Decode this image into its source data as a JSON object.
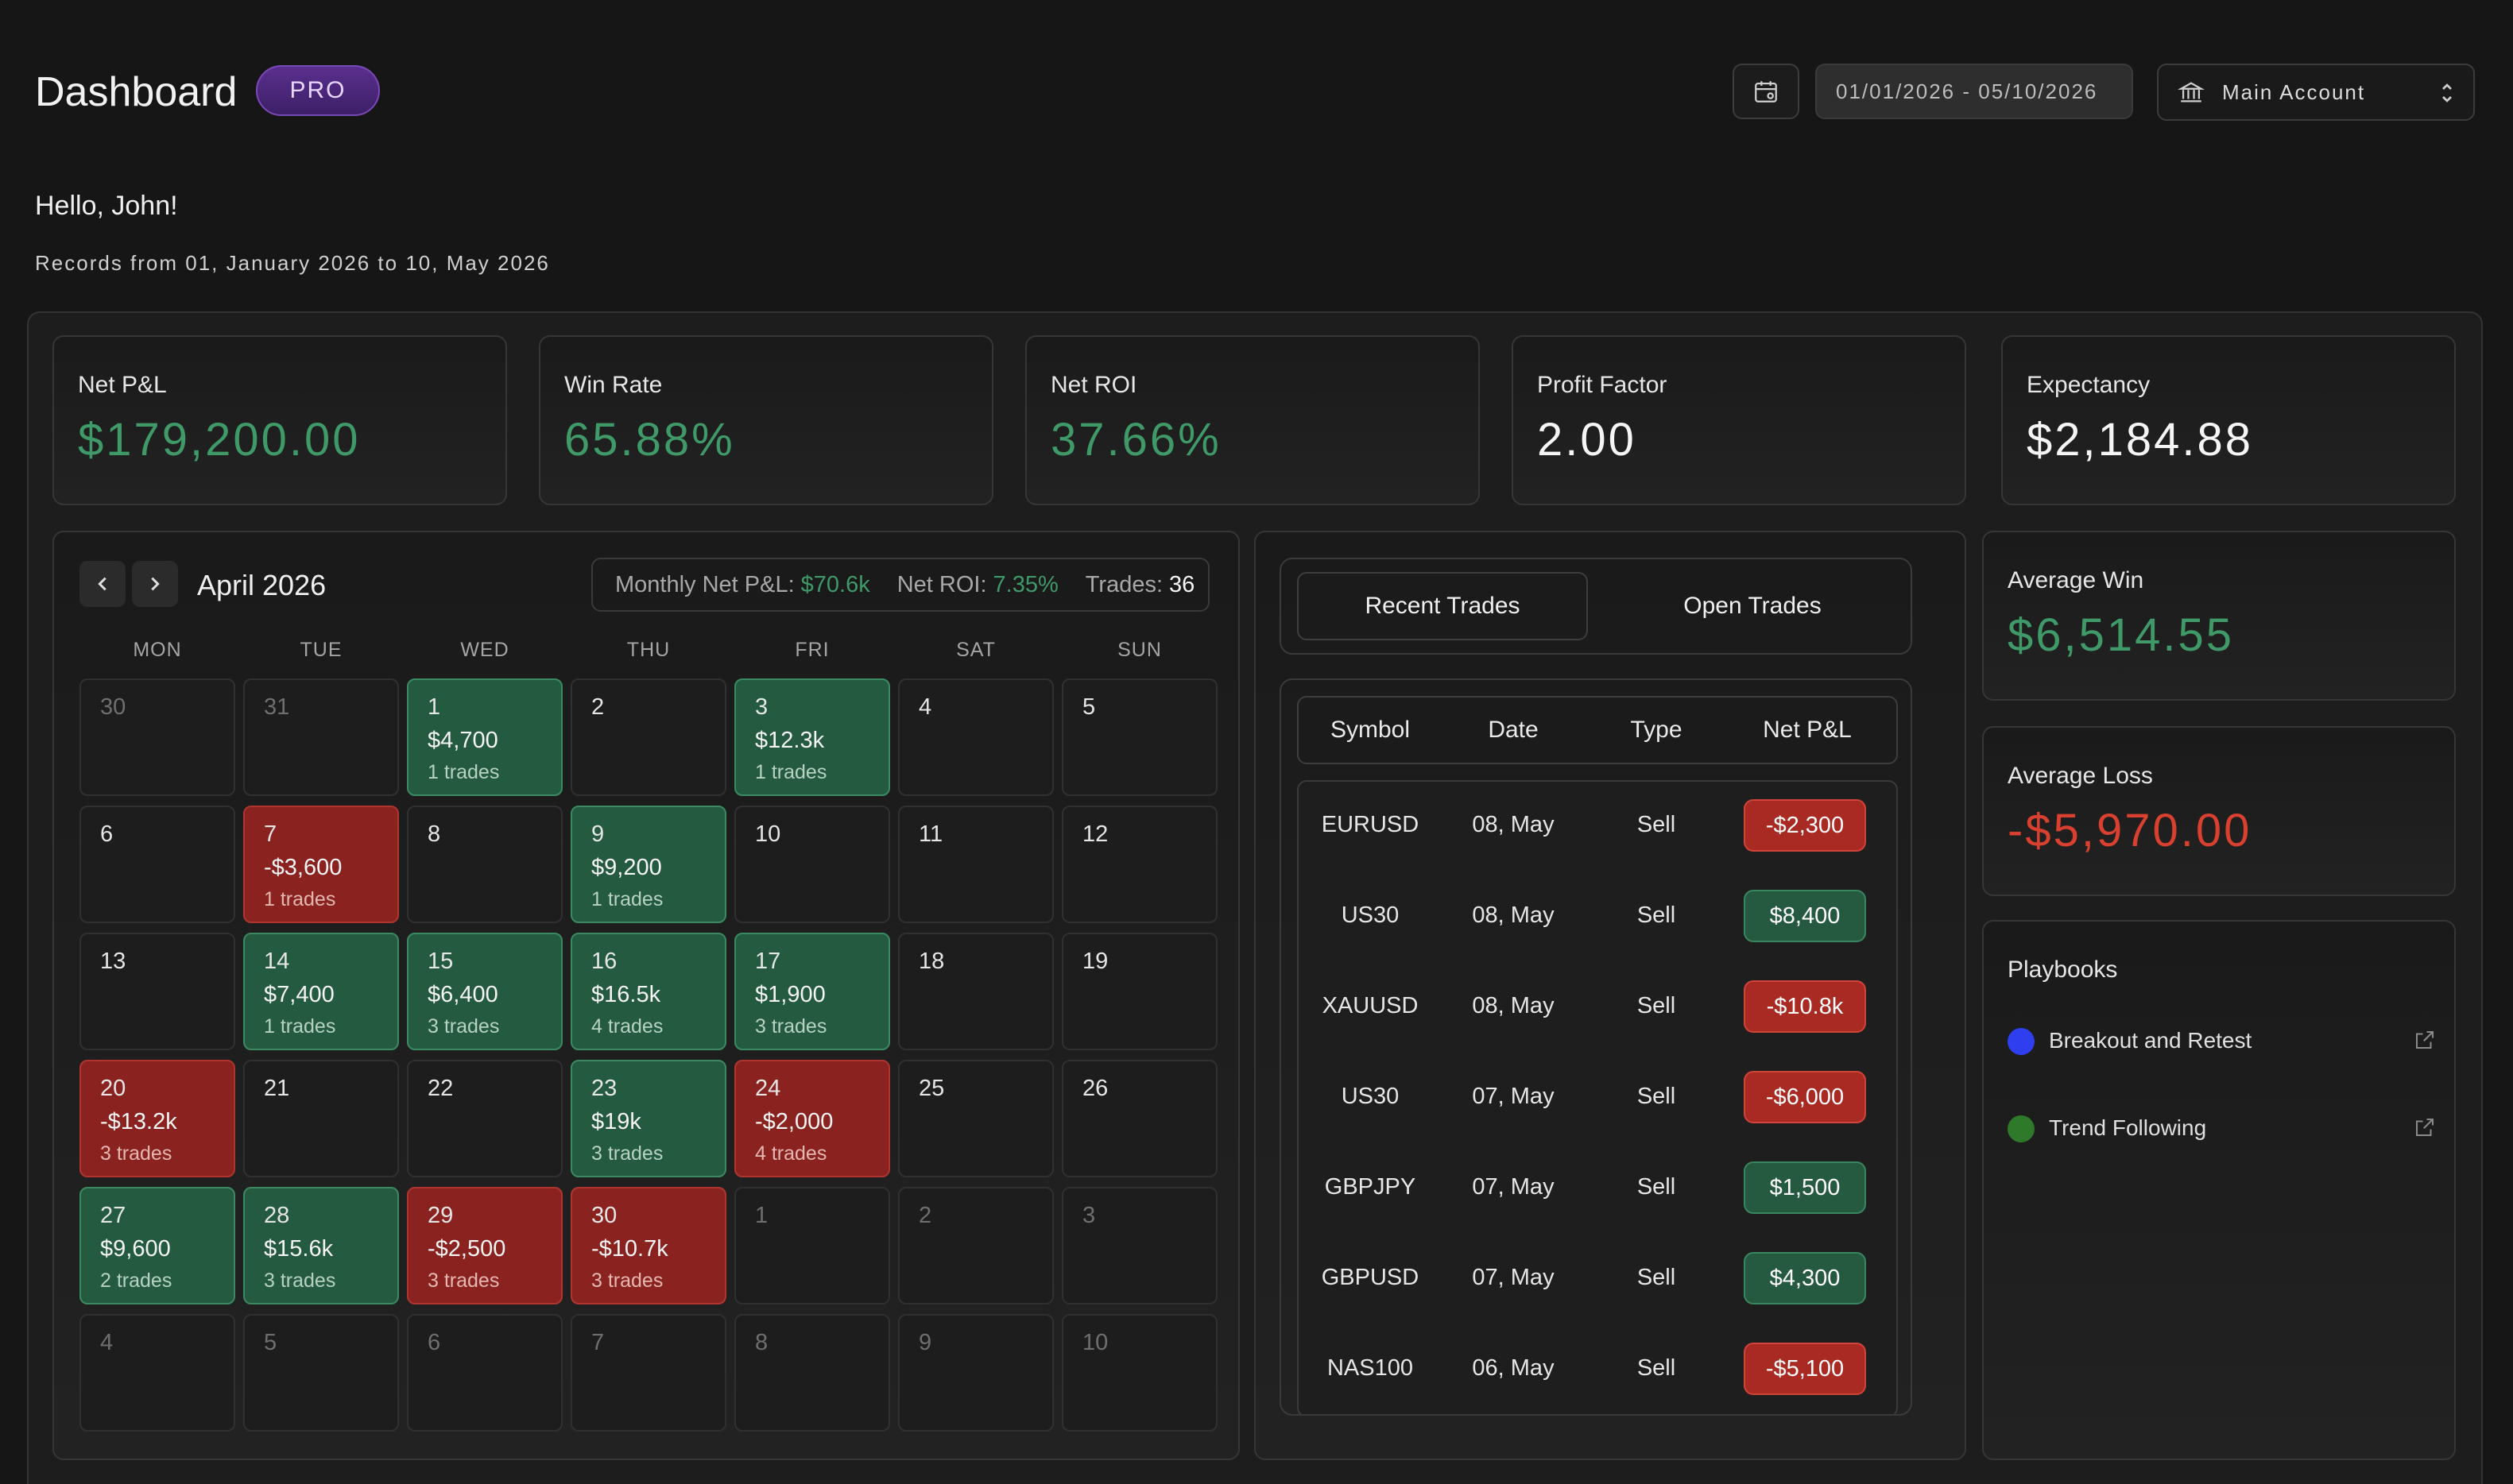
{
  "header": {
    "title": "Dashboard",
    "badge": "PRO",
    "date_range": "01/01/2026 - 05/10/2026",
    "account": "Main Account"
  },
  "greeting": "Hello, John!",
  "records_text": "Records from 01, January 2026 to 10, May 2026",
  "stats": [
    {
      "label": "Net P&L",
      "value": "$179,200.00",
      "tone": "green"
    },
    {
      "label": "Win Rate",
      "value": "65.88%",
      "tone": "green"
    },
    {
      "label": "Net ROI",
      "value": "37.66%",
      "tone": "green"
    },
    {
      "label": "Profit Factor",
      "value": "2.00",
      "tone": "white"
    },
    {
      "label": "Expectancy",
      "value": "$2,184.88",
      "tone": "white"
    }
  ],
  "calendar": {
    "month": "April 2026",
    "summary": {
      "pnl_label": "Monthly Net P&L:",
      "pnl_value": "$70.6k",
      "roi_label": "Net ROI:",
      "roi_value": "7.35%",
      "trades_label": "Trades:",
      "trades_value": "36"
    },
    "weekdays": [
      "MON",
      "TUE",
      "WED",
      "THU",
      "FRI",
      "SAT",
      "SUN"
    ],
    "weeks": [
      [
        {
          "day": "30",
          "other": true
        },
        {
          "day": "31",
          "other": true
        },
        {
          "day": "1",
          "amount": "$4,700",
          "trades": "1 trades",
          "state": "pos"
        },
        {
          "day": "2"
        },
        {
          "day": "3",
          "amount": "$12.3k",
          "trades": "1 trades",
          "state": "pos"
        },
        {
          "day": "4"
        },
        {
          "day": "5"
        }
      ],
      [
        {
          "day": "6"
        },
        {
          "day": "7",
          "amount": "-$3,600",
          "trades": "1 trades",
          "state": "neg"
        },
        {
          "day": "8"
        },
        {
          "day": "9",
          "amount": "$9,200",
          "trades": "1 trades",
          "state": "pos"
        },
        {
          "day": "10"
        },
        {
          "day": "11"
        },
        {
          "day": "12"
        }
      ],
      [
        {
          "day": "13"
        },
        {
          "day": "14",
          "amount": "$7,400",
          "trades": "1 trades",
          "state": "pos"
        },
        {
          "day": "15",
          "amount": "$6,400",
          "trades": "3 trades",
          "state": "pos"
        },
        {
          "day": "16",
          "amount": "$16.5k",
          "trades": "4 trades",
          "state": "pos"
        },
        {
          "day": "17",
          "amount": "$1,900",
          "trades": "3 trades",
          "state": "pos"
        },
        {
          "day": "18"
        },
        {
          "day": "19"
        }
      ],
      [
        {
          "day": "20",
          "amount": "-$13.2k",
          "trades": "3 trades",
          "state": "neg"
        },
        {
          "day": "21"
        },
        {
          "day": "22"
        },
        {
          "day": "23",
          "amount": "$19k",
          "trades": "3 trades",
          "state": "pos"
        },
        {
          "day": "24",
          "amount": "-$2,000",
          "trades": "4 trades",
          "state": "neg"
        },
        {
          "day": "25"
        },
        {
          "day": "26"
        }
      ],
      [
        {
          "day": "27",
          "amount": "$9,600",
          "trades": "2 trades",
          "state": "pos"
        },
        {
          "day": "28",
          "amount": "$15.6k",
          "trades": "3 trades",
          "state": "pos"
        },
        {
          "day": "29",
          "amount": "-$2,500",
          "trades": "3 trades",
          "state": "neg"
        },
        {
          "day": "30",
          "amount": "-$10.7k",
          "trades": "3 trades",
          "state": "neg"
        },
        {
          "day": "1",
          "other": true
        },
        {
          "day": "2",
          "other": true
        },
        {
          "day": "3",
          "other": true
        }
      ],
      [
        {
          "day": "4",
          "other": true
        },
        {
          "day": "5",
          "other": true
        },
        {
          "day": "6",
          "other": true
        },
        {
          "day": "7",
          "other": true
        },
        {
          "day": "8",
          "other": true
        },
        {
          "day": "9",
          "other": true
        },
        {
          "day": "10",
          "other": true
        }
      ]
    ]
  },
  "trades": {
    "tabs": [
      "Recent Trades",
      "Open Trades"
    ],
    "columns": [
      "Symbol",
      "Date",
      "Type",
      "Net P&L"
    ],
    "rows": [
      {
        "symbol": "EURUSD",
        "date": "08, May",
        "type": "Sell",
        "pnl": "-$2,300",
        "state": "neg"
      },
      {
        "symbol": "US30",
        "date": "08, May",
        "type": "Sell",
        "pnl": "$8,400",
        "state": "pos"
      },
      {
        "symbol": "XAUUSD",
        "date": "08, May",
        "type": "Sell",
        "pnl": "-$10.8k",
        "state": "neg"
      },
      {
        "symbol": "US30",
        "date": "07, May",
        "type": "Sell",
        "pnl": "-$6,000",
        "state": "neg"
      },
      {
        "symbol": "GBPJPY",
        "date": "07, May",
        "type": "Sell",
        "pnl": "$1,500",
        "state": "pos"
      },
      {
        "symbol": "GBPUSD",
        "date": "07, May",
        "type": "Sell",
        "pnl": "$4,300",
        "state": "pos"
      },
      {
        "symbol": "NAS100",
        "date": "06, May",
        "type": "Sell",
        "pnl": "-$5,100",
        "state": "neg"
      }
    ]
  },
  "average_win": {
    "label": "Average Win",
    "value": "$6,514.55"
  },
  "average_loss": {
    "label": "Average Loss",
    "value": "-$5,970.00"
  },
  "playbooks": {
    "title": "Playbooks",
    "items": [
      {
        "label": "Breakout and Retest",
        "color": "#2f3ff0"
      },
      {
        "label": "Trend Following",
        "color": "#2f7a2a"
      }
    ]
  },
  "colors": {
    "positive": "#3f9a68",
    "negative": "#d9402f",
    "accent": "#5a2f8e"
  }
}
